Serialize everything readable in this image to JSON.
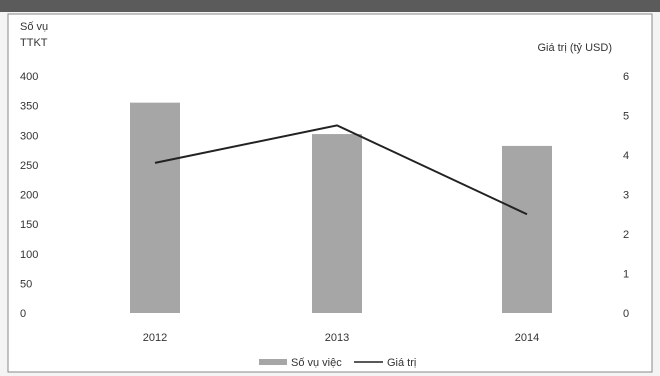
{
  "chart_data": {
    "type": "bar",
    "categories": [
      "2012",
      "2013",
      "2014"
    ],
    "y_left": {
      "label_line1": "Số vụ",
      "label_line2": "TTKT",
      "ylim": [
        0,
        400
      ],
      "ticks": [
        "0",
        "50",
        "100",
        "150",
        "200",
        "250",
        "300",
        "350",
        "400"
      ]
    },
    "y_right": {
      "label": "Giá trị (tỷ USD)",
      "ylim": [
        0,
        6
      ],
      "ticks": [
        "0",
        "1",
        "2",
        "3",
        "4",
        "5",
        "6"
      ]
    },
    "series": [
      {
        "name": "Số vụ việc",
        "kind": "bar",
        "axis": "left",
        "values": [
          355,
          302,
          282
        ],
        "color": "#a6a6a6"
      },
      {
        "name": "Giá trị",
        "kind": "line",
        "axis": "right",
        "values": [
          3.8,
          4.75,
          2.5
        ],
        "color": "#222222"
      }
    ],
    "legend_position": "bottom",
    "grid": false
  }
}
